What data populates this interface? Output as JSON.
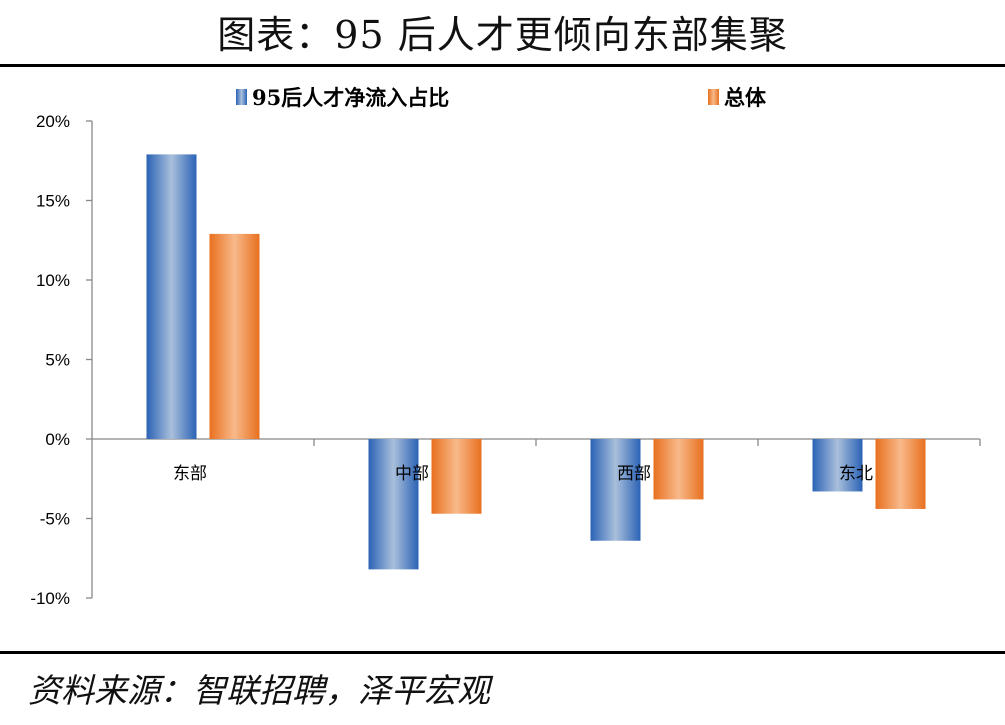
{
  "title": "图表：95 后人才更倾向东部集聚",
  "source": "资料来源：智联招聘，泽平宏观",
  "colors": {
    "series1": "#3a72c0",
    "series2": "#ef7a2e",
    "axis": "#888888"
  },
  "chart_data": {
    "type": "bar",
    "categories": [
      "东部",
      "中部",
      "西部",
      "东北"
    ],
    "series": [
      {
        "name": "95后人才净流入占比",
        "values": [
          17.9,
          -8.2,
          -6.4,
          -3.3
        ]
      },
      {
        "name": "总体",
        "values": [
          12.9,
          -4.7,
          -3.8,
          -4.4
        ]
      }
    ],
    "ylim": [
      -10,
      20
    ],
    "yticks": [
      20,
      15,
      10,
      5,
      0,
      -5,
      -10
    ],
    "ytick_labels": [
      "20%",
      "15%",
      "10%",
      "5%",
      "0%",
      "-5%",
      "-10%"
    ],
    "legend": "top",
    "grid": false
  }
}
